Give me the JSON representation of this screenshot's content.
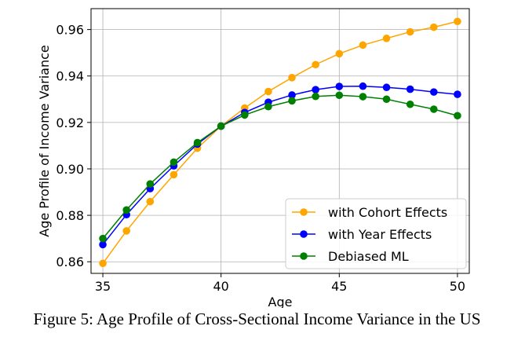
{
  "chart_data": {
    "type": "line",
    "title": "",
    "xlabel": "Age",
    "ylabel": "Age Profile of Income Variance",
    "xlim": [
      34.5,
      50.5
    ],
    "ylim": [
      0.855,
      0.969
    ],
    "xticks": [
      35,
      40,
      45,
      50
    ],
    "yticks": [
      0.86,
      0.88,
      0.9,
      0.92,
      0.94,
      0.96
    ],
    "ytick_labels": [
      "0.86",
      "0.88",
      "0.90",
      "0.92",
      "0.94",
      "0.96"
    ],
    "grid": true,
    "legend_position": "lower-right",
    "x": [
      35,
      36,
      37,
      38,
      39,
      40,
      41,
      42,
      43,
      44,
      45,
      46,
      47,
      48,
      49,
      50
    ],
    "series": [
      {
        "name": "with Cohort Effects",
        "color": "#ffa500",
        "values": [
          0.8593,
          0.8733,
          0.8859,
          0.8975,
          0.9089,
          0.9184,
          0.9262,
          0.9333,
          0.9393,
          0.9449,
          0.9496,
          0.9533,
          0.9562,
          0.959,
          0.961,
          0.9635
        ]
      },
      {
        "name": "with Year Effects",
        "color": "#0000ff",
        "values": [
          0.8674,
          0.8803,
          0.8915,
          0.9013,
          0.9107,
          0.9184,
          0.9243,
          0.9287,
          0.9318,
          0.9341,
          0.9355,
          0.9356,
          0.9351,
          0.9343,
          0.9331,
          0.9321
        ]
      },
      {
        "name": "Debiased ML",
        "color": "#008000",
        "values": [
          0.87,
          0.8823,
          0.8935,
          0.9029,
          0.9113,
          0.9184,
          0.9232,
          0.9268,
          0.9293,
          0.9312,
          0.9317,
          0.9311,
          0.93,
          0.9278,
          0.9257,
          0.9229
        ]
      }
    ]
  },
  "caption": "Figure 5: Age Profile of Cross-Sectional Income Variance in the US"
}
